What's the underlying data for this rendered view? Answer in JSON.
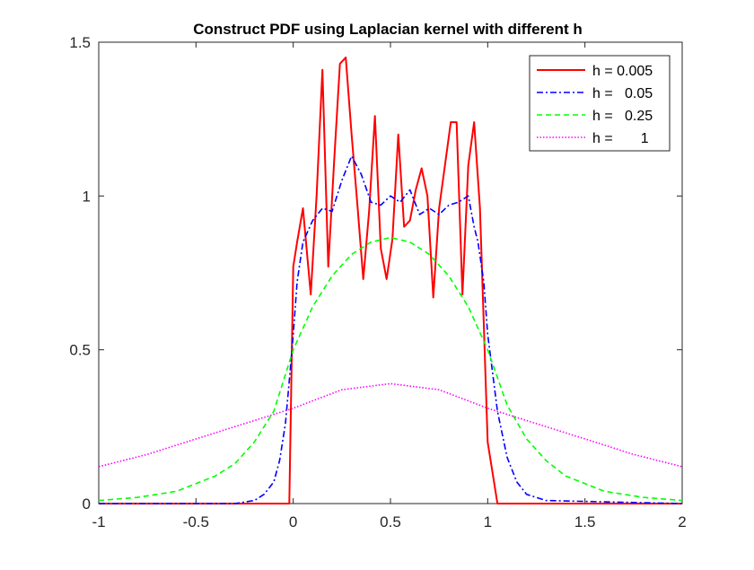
{
  "chart_data": {
    "type": "line",
    "title": "Construct PDF using Laplacian kernel with different h",
    "xlabel": "",
    "ylabel": "",
    "xlim": [
      -1,
      2
    ],
    "ylim": [
      0,
      1.5
    ],
    "xticks": [
      "-1",
      "-0.5",
      "0",
      "0.5",
      "1",
      "1.5",
      "2"
    ],
    "yticks": [
      "0",
      "0.5",
      "1",
      "1.5"
    ],
    "grid": false,
    "legend_position": "top-right",
    "series": [
      {
        "name": "h = 0.005",
        "color": "#ff0000",
        "dash": "solid",
        "x": [
          -1,
          -0.02,
          0.0,
          0.02,
          0.05,
          0.09,
          0.12,
          0.15,
          0.18,
          0.21,
          0.24,
          0.27,
          0.3,
          0.33,
          0.36,
          0.39,
          0.42,
          0.45,
          0.48,
          0.51,
          0.54,
          0.57,
          0.6,
          0.63,
          0.66,
          0.69,
          0.72,
          0.75,
          0.78,
          0.81,
          0.84,
          0.87,
          0.9,
          0.93,
          0.96,
          1.0,
          1.05,
          2
        ],
        "y": [
          0,
          0,
          0.77,
          0.85,
          0.96,
          0.68,
          1.0,
          1.41,
          0.77,
          1.11,
          1.43,
          1.45,
          1.2,
          0.97,
          0.73,
          0.95,
          1.26,
          0.83,
          0.73,
          0.86,
          1.2,
          0.9,
          0.92,
          1.02,
          1.09,
          1.0,
          0.67,
          0.96,
          1.1,
          1.24,
          1.24,
          0.68,
          1.1,
          1.24,
          0.96,
          0.2,
          0.0,
          0
        ]
      },
      {
        "name": "h =   0.05",
        "color": "#0000ff",
        "dash": "dashdot",
        "x": [
          -1,
          -0.3,
          -0.2,
          -0.15,
          -0.1,
          -0.07,
          -0.04,
          -0.02,
          0.0,
          0.02,
          0.05,
          0.1,
          0.15,
          0.2,
          0.25,
          0.3,
          0.35,
          0.4,
          0.45,
          0.5,
          0.55,
          0.6,
          0.65,
          0.7,
          0.75,
          0.8,
          0.85,
          0.9,
          0.93,
          0.95,
          0.98,
          1.0,
          1.02,
          1.05,
          1.1,
          1.15,
          1.2,
          1.3,
          2
        ],
        "y": [
          0,
          0.0,
          0.01,
          0.03,
          0.07,
          0.14,
          0.26,
          0.4,
          0.55,
          0.72,
          0.85,
          0.92,
          0.96,
          0.95,
          1.05,
          1.13,
          1.07,
          0.98,
          0.97,
          1.0,
          0.98,
          1.02,
          0.94,
          0.96,
          0.94,
          0.97,
          0.98,
          1.0,
          0.9,
          0.85,
          0.72,
          0.55,
          0.45,
          0.3,
          0.15,
          0.07,
          0.03,
          0.01,
          0
        ]
      },
      {
        "name": "h =   0.25",
        "color": "#00ff00",
        "dash": "dashed",
        "x": [
          -1,
          -0.8,
          -0.6,
          -0.4,
          -0.3,
          -0.2,
          -0.1,
          0.0,
          0.1,
          0.2,
          0.3,
          0.4,
          0.5,
          0.6,
          0.7,
          0.8,
          0.9,
          1.0,
          1.1,
          1.2,
          1.3,
          1.4,
          1.6,
          1.8,
          2
        ],
        "y": [
          0.01,
          0.02,
          0.04,
          0.09,
          0.13,
          0.2,
          0.3,
          0.5,
          0.64,
          0.74,
          0.81,
          0.85,
          0.865,
          0.85,
          0.81,
          0.74,
          0.64,
          0.5,
          0.32,
          0.21,
          0.14,
          0.09,
          0.04,
          0.02,
          0.01
        ]
      },
      {
        "name": "h =       1",
        "color": "#ff00ff",
        "dash": "dotted",
        "x": [
          -1,
          -0.75,
          -0.5,
          -0.25,
          0.0,
          0.25,
          0.5,
          0.75,
          1.0,
          1.25,
          1.5,
          1.75,
          2
        ],
        "y": [
          0.12,
          0.16,
          0.21,
          0.26,
          0.31,
          0.37,
          0.39,
          0.37,
          0.31,
          0.26,
          0.21,
          0.16,
          0.12
        ]
      }
    ]
  }
}
